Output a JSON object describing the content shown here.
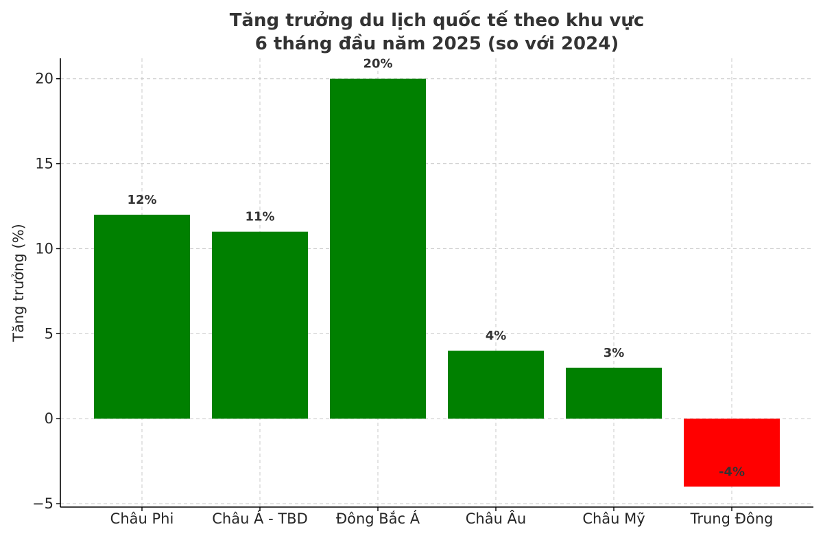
{
  "chart_data": {
    "type": "bar",
    "title_line1": "Tăng trưởng du lịch quốc tế theo khu vực",
    "title_line2": "6 tháng đầu năm 2025 (so với 2024)",
    "xlabel": "",
    "ylabel": "Tăng trưởng (%)",
    "ylim": [
      -5.2,
      21.2
    ],
    "yticks": [
      -5,
      0,
      5,
      10,
      15,
      20
    ],
    "ytick_labels": [
      "−5",
      "0",
      "5",
      "10",
      "15",
      "20"
    ],
    "grid": true,
    "categories": [
      "Châu Phi",
      "Châu Á - TBD",
      "Đông Bắc Á",
      "Châu Âu",
      "Châu Mỹ",
      "Trung Đông"
    ],
    "values": [
      12,
      11,
      20,
      4,
      3,
      -4
    ],
    "data_labels": [
      "12%",
      "11%",
      "20%",
      "4%",
      "3%",
      "-4%"
    ],
    "colors": {
      "positive": "#008000",
      "negative": "#ff0000"
    }
  }
}
